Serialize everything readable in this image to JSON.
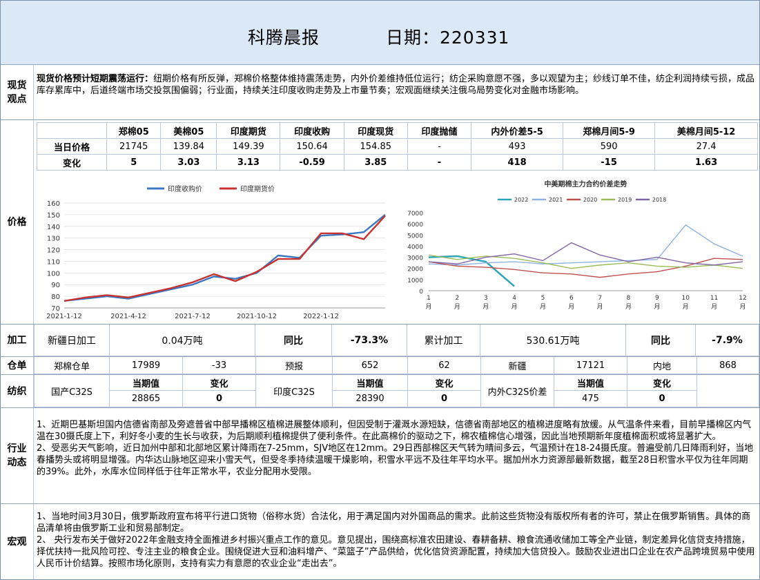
{
  "header": {
    "title": "科腾晨报",
    "date": "日期：220331"
  },
  "spot": {
    "label": "现货观点",
    "bold": "现货价格预计短期震荡运行：",
    "text": "纽期价格有所反弹，郑棉价格整体维持震荡走势，内外价差维持低位运行；纺企采购意愿不强，多以观望为主；纱线订单不佳，纺企利润持续亏损，成品库存累库中，后道终端市场交投氛围偏弱；行业面，持续关注印度收购走势及上市量节奏；宏观面继续关注俄乌局势变化对金融市场影响。"
  },
  "price": {
    "label": "价格",
    "columns": [
      "郑棉05",
      "美棉05",
      "印度期货",
      "印度收购",
      "印度现货",
      "印度抛储",
      "内外价差5-5",
      "郑棉月间5-9",
      "美棉月间5-12"
    ],
    "rows": [
      {
        "name": "当日价格",
        "values": [
          "21745",
          "139.84",
          "149.39",
          "150.64",
          "154.85",
          "-",
          "493",
          "590",
          "27.4"
        ]
      },
      {
        "name": "变化",
        "values": [
          "5",
          "3.03",
          "3.13",
          "-0.59",
          "3.85",
          "-",
          "418",
          "-15",
          "1.63"
        ]
      }
    ]
  },
  "chart_data": [
    {
      "type": "line",
      "title": "",
      "x": [
        "2021-1-12",
        "2021-2-12",
        "2021-3-12",
        "2021-4-12",
        "2021-5-12",
        "2021-6-12",
        "2021-7-12",
        "2021-8-12",
        "2021-9-12",
        "2021-10-12",
        "2021-11-12",
        "2021-12-12",
        "2022-1-12",
        "2022-2-12",
        "2022-3-12",
        "2022-3-31"
      ],
      "xticks": [
        "2021-1-12",
        "2021-4-12",
        "2021-7-12",
        "2021-10-12",
        "2022-1-12"
      ],
      "ylim": [
        70,
        160
      ],
      "yticks": [
        70,
        80,
        90,
        100,
        110,
        120,
        130,
        140,
        150,
        160
      ],
      "legend": "top",
      "series": [
        {
          "name": "印度收购价",
          "color": "#3b78c4",
          "values": [
            76,
            78,
            80,
            78,
            82,
            86,
            90,
            97,
            95,
            100,
            115,
            113,
            132,
            133,
            135,
            150
          ]
        },
        {
          "name": "印度期货价",
          "color": "#c8322e",
          "values": [
            76,
            79,
            81,
            79,
            83,
            87,
            92,
            99,
            93,
            101,
            112,
            112,
            134,
            134,
            129,
            149
          ]
        }
      ]
    },
    {
      "type": "line",
      "title": "中美期棉主力合约价差走势",
      "xticks": [
        "1\n月",
        "2\n月",
        "3\n月",
        "4\n月",
        "5\n月",
        "6\n月",
        "7\n月",
        "8\n月",
        "9\n月",
        "10\n月",
        "11\n月",
        "12\n月"
      ],
      "ylim": [
        0,
        7000
      ],
      "yticks": [
        0,
        1000,
        2000,
        3000,
        4000,
        5000,
        6000,
        7000
      ],
      "legend": "top",
      "series": [
        {
          "name": "2022",
          "color": "#2aa6b8",
          "values": [
            3000,
            3100,
            2600,
            400
          ]
        },
        {
          "name": "2021",
          "color": "#8db3e2",
          "values": [
            2400,
            2300,
            2500,
            2600,
            2400,
            2500,
            2600,
            2700,
            2800,
            5900,
            4200,
            3100
          ]
        },
        {
          "name": "2020",
          "color": "#c0504d",
          "values": [
            2600,
            2200,
            2100,
            1900,
            1600,
            1500,
            1200,
            1500,
            1700,
            2200,
            2900,
            2800
          ]
        },
        {
          "name": "2019",
          "color": "#9bbb59",
          "values": [
            3200,
            2800,
            3100,
            2900,
            2500,
            2000,
            2300,
            2500,
            2200,
            2100,
            2300,
            2000
          ]
        },
        {
          "name": "2018",
          "color": "#8064a2",
          "values": [
            2600,
            2400,
            3000,
            3300,
            2700,
            4300,
            3200,
            2600,
            3000,
            2500,
            2300,
            2600
          ]
        }
      ]
    }
  ],
  "processing": {
    "label": "加工",
    "c1": "新疆日加工",
    "c2": "0.04万吨",
    "c3": "同比",
    "c4": "-73.3%",
    "c5": "累计加工",
    "c6": "530.61万吨",
    "c7": "同比",
    "c8": "-7.9%"
  },
  "warehouse": {
    "label": "仓单",
    "c1": "郑棉仓单",
    "c2": "17989",
    "c3": "-33",
    "c4": "预报",
    "c5": "652",
    "c6": "62",
    "c7": "新疆",
    "c8": "17121",
    "c9": "内地",
    "c10": "868"
  },
  "textile": {
    "label": "纺织",
    "cur": "当期值",
    "chg": "变化",
    "items": [
      {
        "name": "国产C32S",
        "value": "28865",
        "change": "0"
      },
      {
        "name": "印度C32S",
        "value": "28390",
        "change": "0"
      },
      {
        "name": "内外C32S价差",
        "value": "475",
        "change": "0"
      }
    ]
  },
  "industry": {
    "label": "行业动态",
    "p1": "1、近期巴基斯坦国内信德省南部及旁遮普省中部早播棉区植棉进展整体顺利，但因受制于灌溉水源短缺，信德省南部地区的植棉进度略有放缓。从气温条件来看，目前早播棉区内气温在30摄氏度上下，利好冬小麦的生长与收获，为后期顺利植棉提供了便利条件。在此高棉价的驱动之下，棉农植棉信心增强，因此当地预期新年度植棉面积或将显著扩大。",
    "p2": "2、受恶劣天气影响，近日加州中部和北部地区累计降雨在7-25mm，SJV地区在12mm。29日西部棉区天气转为晴间多云，气温预计在18-24摄氏度。普遍受前几日降雨利好，当地春播势头或将明显增强。内华达山脉地区迎来小雪天气，但受冬季持续温暖干燥影响，积雪水平远不及往年平均水平。据加州水力资源部最新数据，截至28日积雪水平仅为往年同期的39%。此外，水库水位同样低于往年正常水平，农业分配用水受限。"
  },
  "macro": {
    "label": "宏观",
    "p1": "1、当地时间3月30日，俄罗斯政府宣布将平行进口货物（俗称水货）合法化，用于满足国内对外国商品的需求。此前这些货物没有版权所有者的许可，禁止在俄罗斯销售。具体的商品清单将由俄罗斯工业和贸易部制定。",
    "p2": "2、 央行发布关于做好2022年金融支持全面推进乡村振兴重点工作的意见。意见提出，围绕高标准农田建设、春耕备耕、粮食流通收储加工等全产业链，制定差异化信贷支持措施，择优扶持一批风险可控、专注主业的粮食企业。围绕促进大豆和油料增产、“菜篮子”产品供给，优化信贷资源配置，持续加大信贷投入。鼓励农业进出口企业在农产品跨境贸易中使用人民币计价结算。按照市场化原则，支持有实力有意愿的农业企业“走出去”。"
  }
}
